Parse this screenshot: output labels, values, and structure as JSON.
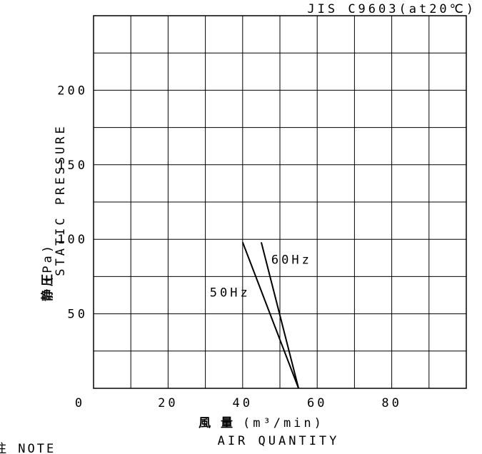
{
  "header": {
    "standard": "JIS C9603(at20℃)"
  },
  "footer": {
    "note": "注 NOTE"
  },
  "chart_data": {
    "type": "line",
    "xlabel_jp": "風 量",
    "xlabel_unit": "(m³/min)",
    "xlabel": "AIR QUANTITY",
    "ylabel_jp": "静圧",
    "ylabel_unit": "(Pa)",
    "ylabel": "STATIC PRESSURE",
    "xlim": [
      0,
      100
    ],
    "ylim": [
      0,
      250
    ],
    "x_ticks": [
      0,
      20,
      40,
      60,
      80
    ],
    "y_ticks": [
      50,
      100,
      150,
      200
    ],
    "x_tick_labels": [
      "0",
      "20",
      "40",
      "60",
      "80"
    ],
    "y_tick_labels": [
      "50",
      "100",
      "150",
      "200"
    ],
    "grid": true,
    "x_grid_step": 10,
    "y_grid_step": 25,
    "series": [
      {
        "name": "50Hz",
        "points": [
          [
            40,
            98
          ],
          [
            55,
            0
          ]
        ]
      },
      {
        "name": "60Hz",
        "points": [
          [
            45,
            98
          ],
          [
            55,
            0
          ]
        ]
      }
    ]
  }
}
